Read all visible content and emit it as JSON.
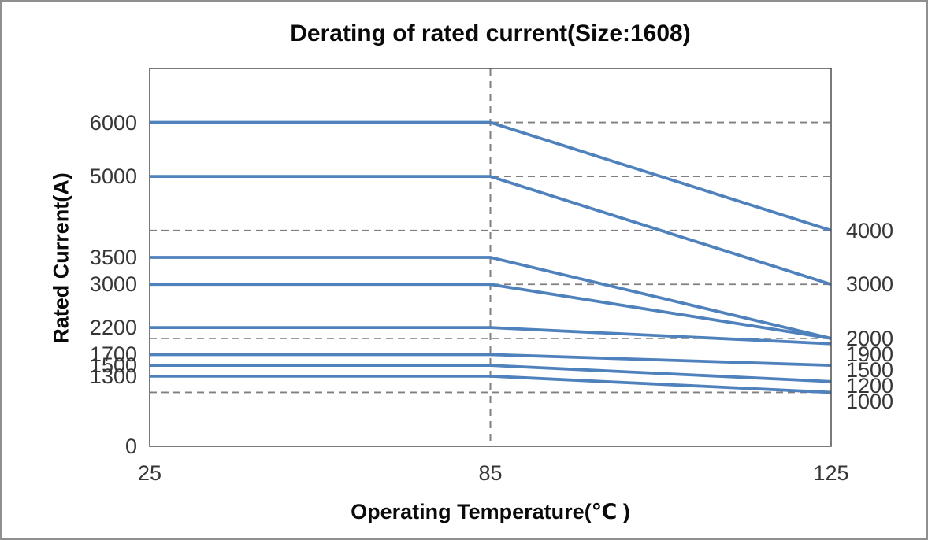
{
  "chart_data": {
    "type": "line",
    "title": "Derating of rated current(Size:1608)",
    "xlabel": "Operating Temperature(℃ )",
    "ylabel": "Rated Current(A)",
    "x_categories": [
      "25",
      "85",
      "125"
    ],
    "x_values": [
      25,
      85,
      125
    ],
    "ylim": [
      0,
      7000
    ],
    "grid": true,
    "gridline_values": [
      1000,
      2000,
      3000,
      4000,
      5000,
      6000
    ],
    "vertical_refline_at_category": "85",
    "legend": "none",
    "series": [
      {
        "name": "6000",
        "values": [
          6000,
          6000,
          4000
        ]
      },
      {
        "name": "5000",
        "values": [
          5000,
          5000,
          3000
        ]
      },
      {
        "name": "3500",
        "values": [
          3500,
          3500,
          2000
        ]
      },
      {
        "name": "3000",
        "values": [
          3000,
          3000,
          2000
        ]
      },
      {
        "name": "2200",
        "values": [
          2200,
          2200,
          1900
        ]
      },
      {
        "name": "1700",
        "values": [
          1700,
          1700,
          1500
        ]
      },
      {
        "name": "1500",
        "values": [
          1500,
          1500,
          1200
        ]
      },
      {
        "name": "1300",
        "values": [
          1300,
          1300,
          1000
        ]
      }
    ],
    "left_axis_labels": [
      6000,
      5000,
      3500,
      3000,
      2200,
      1700,
      1500,
      1300,
      0
    ],
    "right_end_labels": [
      4000,
      3000,
      2000,
      1900,
      1500,
      1200,
      1000
    ],
    "colors": {
      "line": "#4f81bd",
      "gridline": "#7f7f7f",
      "frame": "#4d4d4d",
      "tick_text": "#363636",
      "title_text": "#0a0a0a"
    }
  }
}
